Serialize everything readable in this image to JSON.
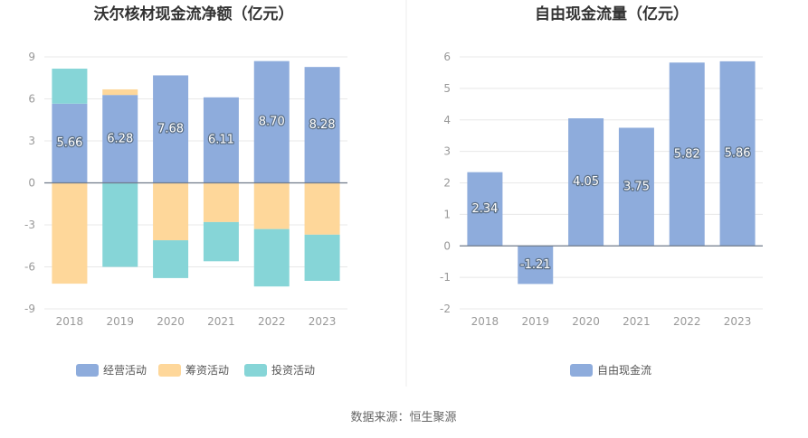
{
  "source_text": "数据来源：恒生聚源",
  "colors": {
    "operating": "#8eacdc",
    "financing": "#fed79a",
    "investing": "#86d5d7",
    "free_cash_flow": "#8eacdc",
    "grid": "#e8e8e8",
    "zero_axis": "#6f7a8a",
    "tick_text": "#999999",
    "title_text": "#333333",
    "value_label_stroke": "#5b6f86"
  },
  "chart_data": [
    {
      "type": "bar",
      "stacked": true,
      "title": "沃尔核材现金流净额（亿元）",
      "categories": [
        "2018",
        "2019",
        "2020",
        "2021",
        "2022",
        "2023"
      ],
      "ylim": [
        -9,
        9
      ],
      "yticks": [
        9,
        6,
        3,
        0,
        -3,
        -6,
        -9
      ],
      "grid": true,
      "legend_position": "bottom",
      "series": [
        {
          "name": "经营活动",
          "values": [
            5.66,
            6.28,
            7.68,
            6.11,
            8.7,
            8.28
          ],
          "labels": [
            "5.66",
            "6.28",
            "7.68",
            "6.11",
            "8.70",
            "8.28"
          ]
        },
        {
          "name": "筹资活动",
          "values": [
            -7.2,
            0.4,
            -4.1,
            -2.8,
            -3.3,
            -3.7
          ]
        },
        {
          "name": "投资活动",
          "values": [
            2.5,
            -6.0,
            -2.7,
            -2.8,
            -4.1,
            -3.3
          ]
        }
      ]
    },
    {
      "type": "bar",
      "title": "自由现金流量（亿元）",
      "categories": [
        "2018",
        "2019",
        "2020",
        "2021",
        "2022",
        "2023"
      ],
      "ylim": [
        -2,
        6
      ],
      "yticks": [
        6,
        5,
        4,
        3,
        2,
        1,
        0,
        -1,
        -2
      ],
      "grid": true,
      "legend_position": "bottom",
      "series": [
        {
          "name": "自由现金流",
          "values": [
            2.34,
            -1.21,
            4.05,
            3.75,
            5.82,
            5.86
          ],
          "labels": [
            "2.34",
            "-1.21",
            "4.05",
            "3.75",
            "5.82",
            "5.86"
          ]
        }
      ]
    }
  ]
}
